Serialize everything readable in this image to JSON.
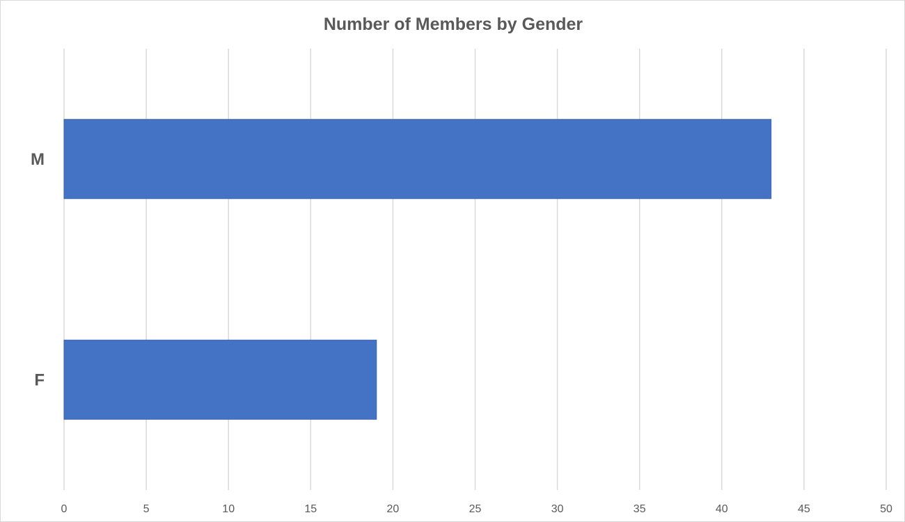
{
  "chart_data": {
    "type": "bar",
    "orientation": "horizontal",
    "title": "Number of Members by Gender",
    "categories": [
      "M",
      "F"
    ],
    "values": [
      43,
      19
    ],
    "xlim": [
      0,
      50
    ],
    "x_ticks": [
      0,
      5,
      10,
      15,
      20,
      25,
      30,
      35,
      40,
      45,
      50
    ],
    "grid": true,
    "legend": "none",
    "bar_color": "#4472C4"
  }
}
